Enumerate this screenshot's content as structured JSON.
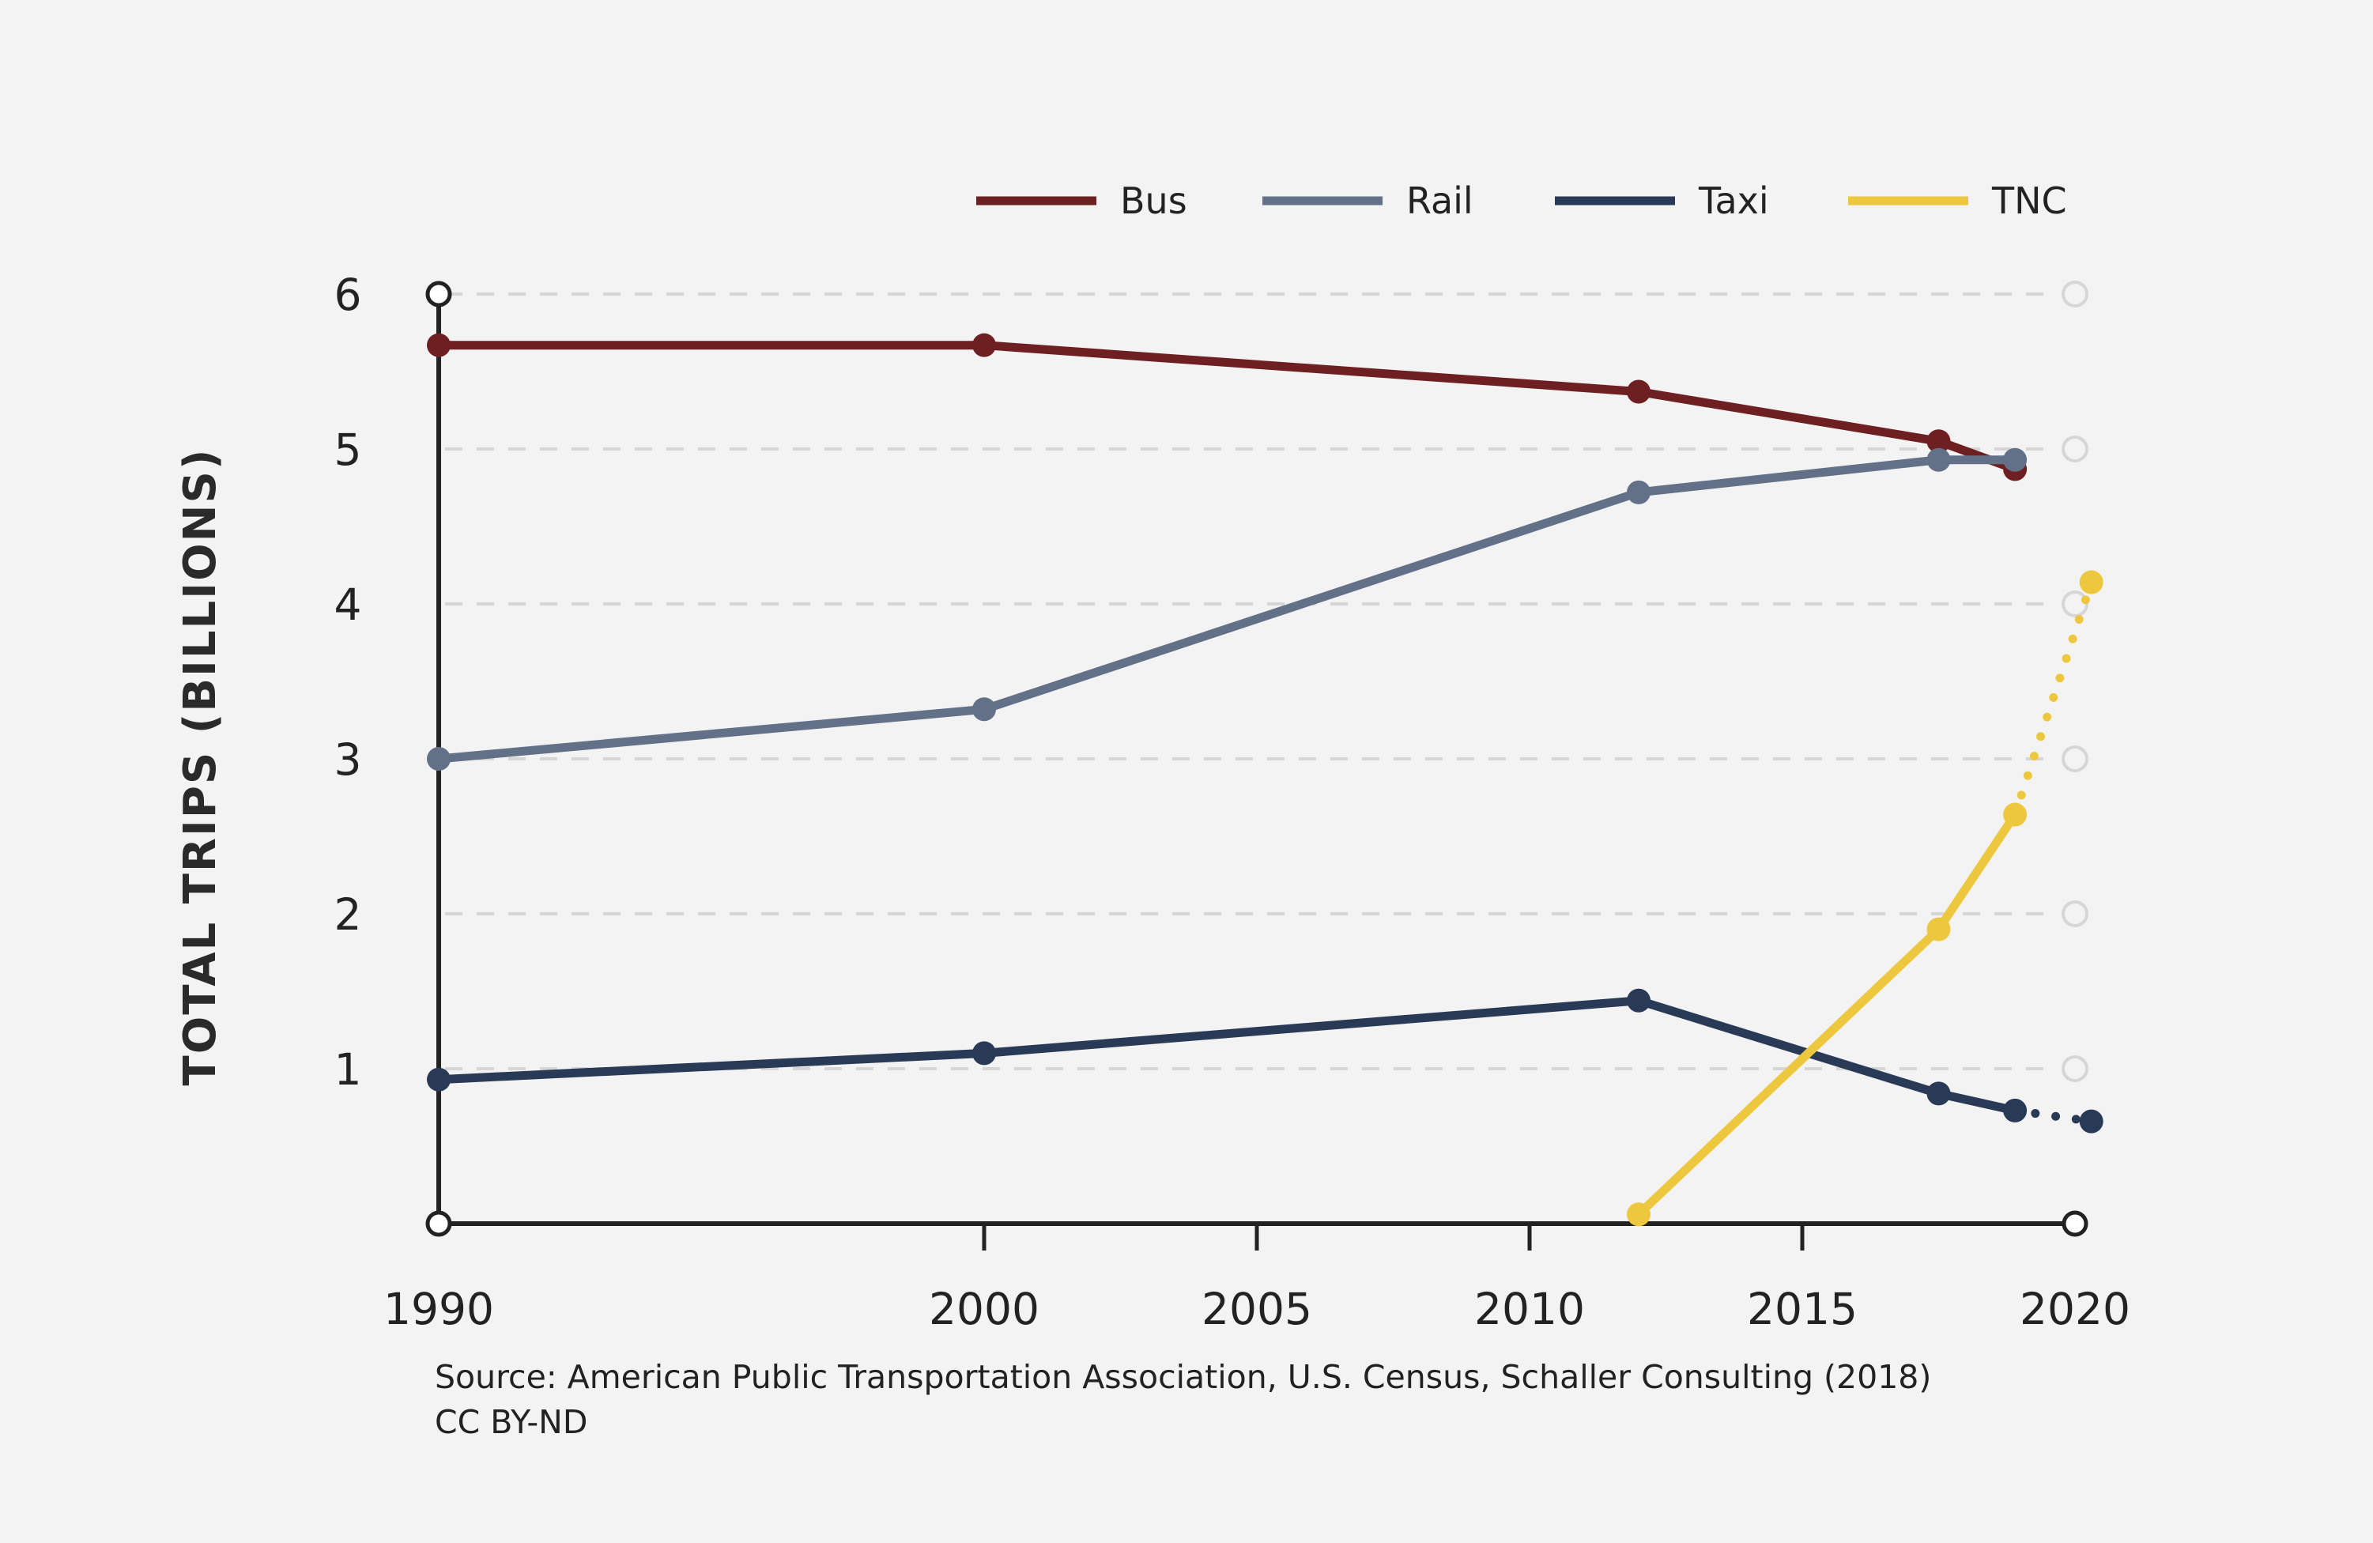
{
  "chart_data": {
    "type": "line",
    "ylabel": "TOTAL TRIPS (BILLIONS)",
    "xlabel": "",
    "xlim": [
      1990,
      2020
    ],
    "ylim": [
      0,
      6
    ],
    "x_ticks": [
      1990,
      2000,
      2005,
      2010,
      2015,
      2020
    ],
    "y_ticks": [
      1,
      2,
      3,
      4,
      5,
      6
    ],
    "grid": "horizontal dashed",
    "legend_position": "top-right",
    "series": [
      {
        "name": "Bus",
        "color": "#6e1f22",
        "points": [
          [
            1990,
            5.67
          ],
          [
            2000,
            5.67
          ],
          [
            2012,
            5.37
          ],
          [
            2017.5,
            5.05
          ],
          [
            2018.9,
            4.87
          ]
        ]
      },
      {
        "name": "Rail",
        "color": "#637188",
        "points": [
          [
            1990,
            3.0
          ],
          [
            2000,
            3.32
          ],
          [
            2012,
            4.72
          ],
          [
            2017.5,
            4.93
          ],
          [
            2018.9,
            4.93
          ]
        ]
      },
      {
        "name": "Taxi",
        "color": "#293a57",
        "points": [
          [
            1990,
            0.93
          ],
          [
            2000,
            1.1
          ],
          [
            2012,
            1.44
          ],
          [
            2017.5,
            0.84
          ],
          [
            2018.9,
            0.73
          ]
        ],
        "projected_points": [
          [
            2018.9,
            0.73
          ],
          [
            2020.3,
            0.66
          ]
        ]
      },
      {
        "name": "TNC",
        "color": "#edc83f",
        "points": [
          [
            2012,
            0.06
          ],
          [
            2017.5,
            1.9
          ],
          [
            2018.9,
            2.64
          ]
        ],
        "projected_points": [
          [
            2018.9,
            2.64
          ],
          [
            2020.3,
            4.14
          ]
        ]
      }
    ]
  },
  "source_line1": "Source: American Public Transportation Association, U.S. Census, Schaller Consulting (2018)",
  "source_line2": "CC BY-ND",
  "colors": {
    "background": "#f3f3f3",
    "axis": "#222222",
    "grid": "#d6d6d6"
  }
}
